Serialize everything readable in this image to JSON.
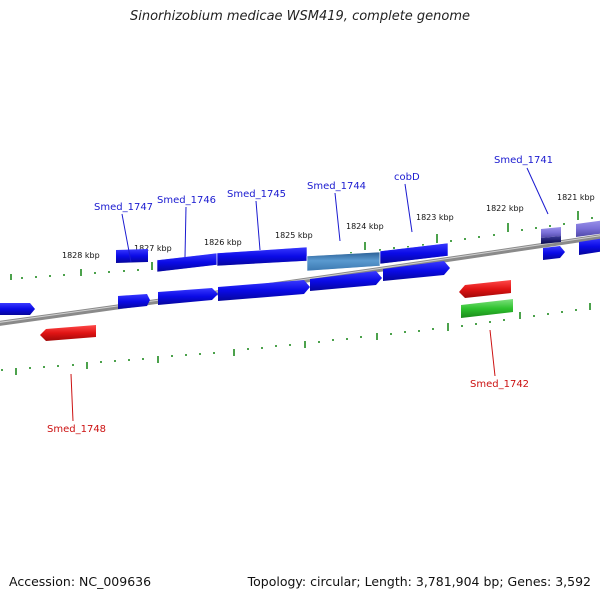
{
  "title": "Sinorhizobium medicae WSM419, complete genome",
  "footer": {
    "accession": "Accession: NC_009636",
    "summary": "Topology: circular; Length: 3,781,904 bp; Genes: 3,592"
  },
  "colors": {
    "forward_gene": "#0a0ae6",
    "highlight_gene": "#3d7fb8",
    "reverse_gene": "#e01414",
    "rna_gene": "#2ec22e",
    "pseudo_gene": "#7a70d8",
    "backbone": "#8a8a8a",
    "ticks": "#1f8a1f"
  },
  "scale_labels": [
    "1828 kbp",
    "1827 kbp",
    "1826 kbp",
    "1825 kbp",
    "1824 kbp",
    "1823 kbp",
    "1822 kbp",
    "1821 kbp"
  ],
  "gene_labels": {
    "forward": [
      "Smed_1747",
      "Smed_1746",
      "Smed_1745",
      "Smed_1744",
      "cobD",
      "Smed_1741"
    ],
    "reverse": [
      "Smed_1748",
      "Smed_1742"
    ]
  }
}
